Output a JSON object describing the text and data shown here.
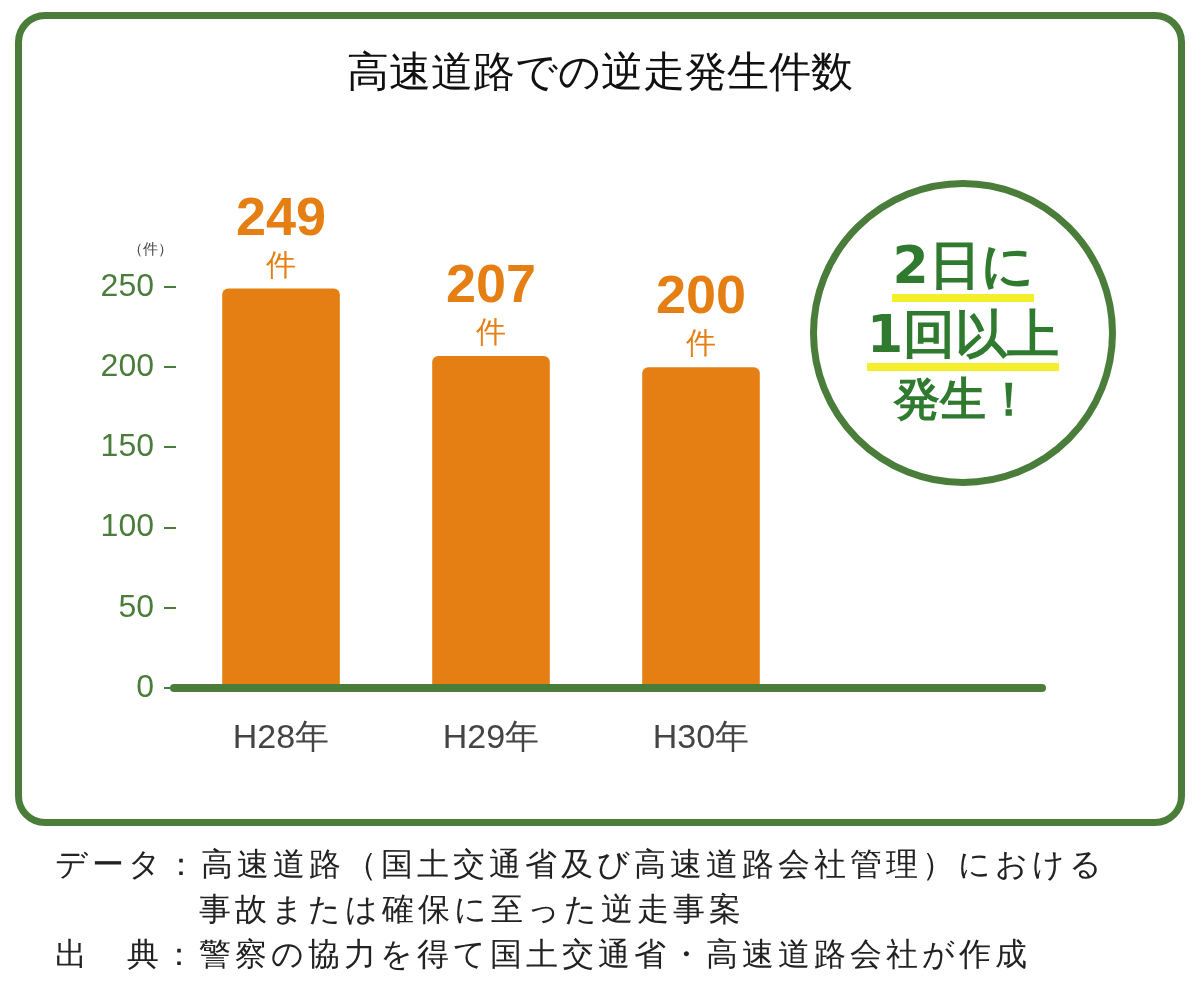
{
  "chart_data": {
    "type": "bar",
    "title": "高速道路での逆走発生件数",
    "ylabel": "（件）",
    "categories": [
      "H28年",
      "H29年",
      "H30年"
    ],
    "values": [
      249,
      207,
      200
    ],
    "value_labels": [
      "249\n件",
      "207\n件",
      "200\n件"
    ],
    "color": "#e57f14",
    "ylim": [
      0,
      250
    ],
    "yticks": [
      0,
      50,
      100,
      150,
      200,
      250
    ],
    "grid": false,
    "legend": false,
    "annotations": [
      "2日に",
      "1回以上",
      "発生！",
      "データ：高速道路（国土交通省及び高速道路会社管理）における事故または確保に至った逆走事案",
      "出　典：警察の協力を得て国土交通省・高速道路会社が作成"
    ]
  }
}
